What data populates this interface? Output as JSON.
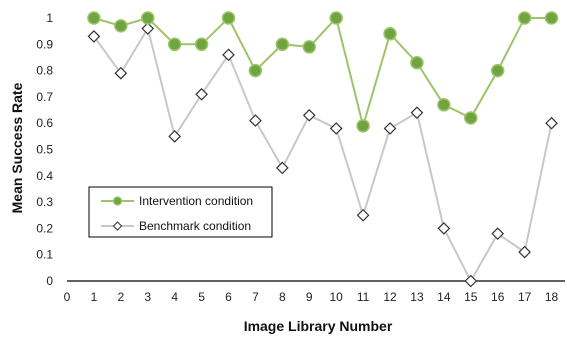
{
  "chart_data": {
    "type": "line",
    "xlabel": "Image Library Number",
    "ylabel": "Mean Success Rate",
    "xlim": [
      0,
      18.5
    ],
    "ylim": [
      0,
      1
    ],
    "x_ticks": [
      "0",
      "1",
      "2",
      "3",
      "4",
      "5",
      "6",
      "7",
      "8",
      "9",
      "10",
      "11",
      "12",
      "13",
      "14",
      "15",
      "16",
      "17",
      "18"
    ],
    "y_ticks": [
      "0",
      "0.1",
      "0.2",
      "0.3",
      "0.4",
      "0.5",
      "0.6",
      "0.7",
      "0.8",
      "0.9",
      "1"
    ],
    "grid": false,
    "legend_position": "bottom-left",
    "x": [
      1,
      2,
      3,
      4,
      5,
      6,
      7,
      8,
      9,
      10,
      11,
      12,
      13,
      14,
      15,
      16,
      17,
      18
    ],
    "series": [
      {
        "name": "Intervention condition",
        "marker": "circle",
        "color": "#9dc46a",
        "marker_fill": "#6fa441",
        "values": [
          1,
          0.97,
          1,
          0.9,
          0.9,
          1,
          0.8,
          0.9,
          0.89,
          1,
          0.59,
          0.94,
          0.83,
          0.67,
          0.62,
          0.8,
          1,
          1
        ]
      },
      {
        "name": "Benchmark condition",
        "marker": "diamond",
        "color": "#c8c8c8",
        "marker_fill": "#ffffff",
        "values": [
          0.93,
          0.79,
          0.96,
          0.55,
          0.71,
          0.86,
          0.61,
          0.43,
          0.63,
          0.58,
          0.25,
          0.58,
          0.64,
          0.2,
          0.0,
          0.18,
          0.11,
          0.6
        ]
      }
    ]
  }
}
